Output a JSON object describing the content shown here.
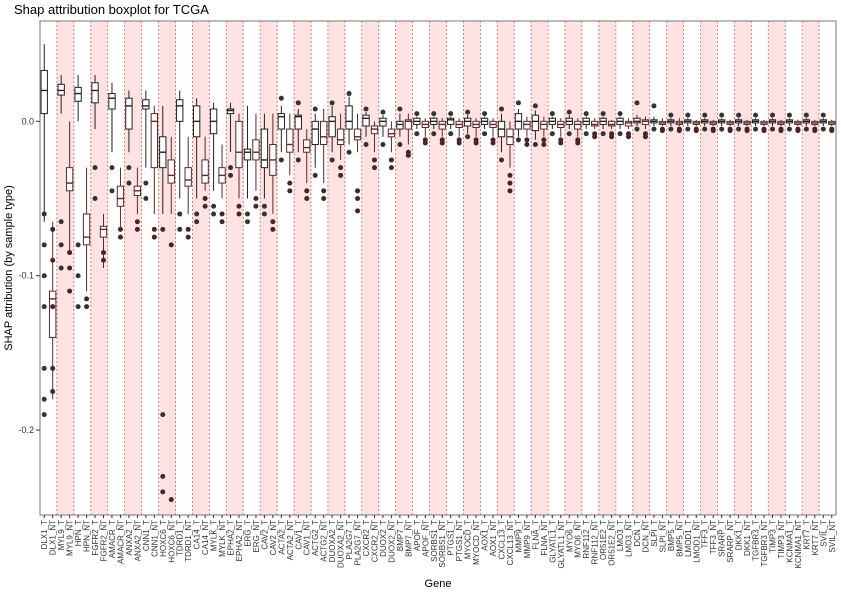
{
  "chart_data": {
    "type": "boxplot",
    "title": "Shap attribution boxplot for TCGA",
    "xlabel": "Gene",
    "ylabel": "SHAP attribution (by sample type)",
    "ylim": [
      -0.255,
      0.065
    ],
    "yticks": [
      0.0,
      -0.1,
      -0.2
    ],
    "ytick_labels": [
      "0.0",
      "-0.1",
      "-0.2"
    ],
    "grid": "vertical dashed red lines per category",
    "legend": "none",
    "colors": {
      "shade": "#ffe3e3",
      "grid": "#e06060",
      "box_outline_1": "#222222",
      "box_outline_2": "#5a2a2a",
      "points": "#333333",
      "points_alt": "#4a2424",
      "panel_border": "#777777"
    },
    "categories": [
      "DLX1_T",
      "DLX1_NT",
      "MYL9_T",
      "MYL9_NT",
      "HPN_T",
      "HPN_NT",
      "FGFR2_T",
      "FGFR2_NT",
      "AMACR_T",
      "AMACR_NT",
      "ANXA2_T",
      "ANXA2_NT",
      "CNN1_T",
      "CNN1_NT",
      "HOXC6_T",
      "HOXC6_NT",
      "TDRD1_T",
      "TDRD1_NT",
      "CA14_T",
      "CA14_NT",
      "MYLK_T",
      "MYLK_NT",
      "EPHA2_T",
      "EPHA2_NT",
      "ERG_T",
      "ERG_NT",
      "CAV2_T",
      "CAV2_NT",
      "ACTA2_T",
      "ACTA2_NT",
      "CAV1_T",
      "CAV1_NT",
      "ACTG2_T",
      "ACTG2_NT",
      "DUOXA2_T",
      "DUOXA2_NT",
      "PLA2G7_T",
      "PLA2G7_NT",
      "CXCR2_T",
      "CXCR2_NT",
      "DUOX2_T",
      "DUOX2_NT",
      "BMP7_T",
      "BMP7_NT",
      "APOF_T",
      "APOF_NT",
      "SORBS1_T",
      "SORBS1_NT",
      "PTGS1_T",
      "PTGS1_NT",
      "MYOCD_T",
      "MYOCD_NT",
      "AOX1_T",
      "AOX1_NT",
      "CXCL13_T",
      "CXCL13_NT",
      "MMP9_T",
      "MMP9_NT",
      "FLNA_T",
      "FLNA_NT",
      "GLYATL1_T",
      "GLYATL1_NT",
      "MYO6_T",
      "MYO6_NT",
      "RNF112_T",
      "RNF112_NT",
      "OR51E2_T",
      "OR51E2_NT",
      "LMO3_T",
      "LMO3_NT",
      "DCN_T",
      "DCN_NT",
      "SLPI_T",
      "SLPI_NT",
      "BMP5_T",
      "BMP5_NT",
      "LMOD1_T",
      "LMOD1_NT",
      "TFF3_T",
      "TFF3_NT",
      "SRARP_T",
      "SRARP_NT",
      "DKK1_T",
      "DKK1_NT",
      "TGFBR3_T",
      "TGFBR3_NT",
      "TIMP3_T",
      "TIMP3_NT",
      "KCNMA1_T",
      "KCNMA1_NT",
      "KRT7_T",
      "KRT7_NT",
      "SVIL_T",
      "SVIL_NT"
    ],
    "series": [
      {
        "stats": [
          [
            -0.065,
            0.005,
            0.02,
            0.033,
            0.05
          ],
          [
            -0.18,
            -0.14,
            -0.115,
            -0.11,
            -0.065
          ],
          [
            0.005,
            0.017,
            0.02,
            0.024,
            0.03
          ],
          [
            -0.085,
            -0.045,
            -0.04,
            -0.03,
            0.0
          ],
          [
            0.0,
            0.013,
            0.018,
            0.022,
            0.03
          ],
          [
            -0.11,
            -0.08,
            -0.075,
            -0.06,
            -0.03
          ],
          [
            -0.005,
            0.012,
            0.02,
            0.025,
            0.03
          ],
          [
            -0.095,
            -0.075,
            -0.07,
            -0.068,
            -0.06
          ],
          [
            -0.02,
            0.008,
            0.015,
            0.018,
            0.025
          ],
          [
            -0.07,
            -0.055,
            -0.05,
            -0.042,
            -0.03
          ],
          [
            -0.02,
            -0.005,
            0.01,
            0.015,
            0.02
          ],
          [
            -0.06,
            -0.048,
            -0.045,
            -0.042,
            -0.03
          ],
          [
            -0.03,
            0.008,
            0.01,
            0.014,
            0.02
          ],
          [
            -0.06,
            -0.03,
            0.0,
            0.005,
            0.01
          ],
          [
            -0.06,
            -0.03,
            -0.02,
            -0.01,
            0.01
          ],
          [
            -0.06,
            -0.04,
            -0.035,
            -0.025,
            -0.01
          ],
          [
            -0.05,
            0.0,
            0.01,
            0.014,
            0.02
          ],
          [
            -0.06,
            -0.042,
            -0.038,
            -0.03,
            -0.01
          ],
          [
            -0.05,
            -0.01,
            0.0,
            0.01,
            0.015
          ],
          [
            -0.045,
            -0.04,
            -0.035,
            -0.025,
            -0.01
          ],
          [
            -0.045,
            -0.008,
            0.0,
            0.008,
            0.012
          ],
          [
            -0.05,
            -0.04,
            -0.035,
            -0.03,
            -0.015
          ],
          [
            -0.02,
            0.005,
            0.007,
            0.008,
            0.012
          ],
          [
            -0.05,
            -0.03,
            -0.02,
            0.0,
            0.005
          ],
          [
            -0.05,
            -0.025,
            -0.02,
            -0.018,
            0.01
          ],
          [
            -0.045,
            -0.025,
            -0.02,
            -0.012,
            0.005
          ],
          [
            -0.05,
            -0.03,
            -0.025,
            -0.005,
            0.005
          ],
          [
            -0.06,
            -0.035,
            -0.025,
            -0.015,
            0.005
          ],
          [
            -0.02,
            -0.005,
            0.003,
            0.005,
            0.01
          ],
          [
            -0.035,
            -0.02,
            -0.015,
            -0.005,
            0.005
          ],
          [
            -0.02,
            -0.005,
            0.003,
            0.004,
            0.008
          ],
          [
            -0.04,
            -0.02,
            -0.017,
            -0.012,
            -0.005
          ],
          [
            -0.03,
            -0.015,
            -0.005,
            0.0,
            0.005
          ],
          [
            -0.04,
            -0.015,
            -0.01,
            0.0,
            0.008
          ],
          [
            -0.02,
            -0.01,
            0.0,
            0.003,
            0.01
          ],
          [
            -0.025,
            -0.015,
            -0.012,
            -0.005,
            0.005
          ],
          [
            -0.015,
            -0.005,
            0.0,
            0.01,
            0.016
          ],
          [
            -0.02,
            -0.012,
            -0.01,
            -0.005,
            0.005
          ],
          [
            -0.01,
            -0.003,
            0.002,
            0.004,
            0.006
          ],
          [
            -0.02,
            -0.008,
            -0.005,
            -0.003,
            0.0
          ],
          [
            -0.01,
            -0.003,
            0.0,
            0.002,
            0.004
          ],
          [
            -0.02,
            -0.01,
            -0.008,
            -0.005,
            0.0
          ],
          [
            -0.01,
            -0.005,
            -0.002,
            0.0,
            0.005
          ],
          [
            -0.015,
            -0.005,
            0.0,
            0.001,
            0.005
          ],
          [
            -0.005,
            -0.002,
            0.0,
            0.002,
            0.003
          ],
          [
            -0.01,
            -0.004,
            -0.002,
            0.0,
            0.002
          ],
          [
            -0.005,
            -0.002,
            0.0,
            0.002,
            0.003
          ],
          [
            -0.01,
            -0.005,
            -0.002,
            0.0,
            0.002
          ],
          [
            -0.005,
            -0.002,
            0.001,
            0.002,
            0.003
          ],
          [
            -0.01,
            -0.004,
            -0.002,
            0.0,
            0.002
          ],
          [
            -0.008,
            -0.003,
            0.0,
            0.002,
            0.004
          ],
          [
            -0.01,
            -0.004,
            -0.002,
            0.0,
            0.002
          ],
          [
            -0.005,
            -0.002,
            0.0,
            0.002,
            0.003
          ],
          [
            -0.01,
            -0.004,
            -0.002,
            0.0,
            0.002
          ],
          [
            -0.02,
            -0.01,
            -0.005,
            0.0,
            0.005
          ],
          [
            -0.03,
            -0.015,
            -0.01,
            -0.005,
            0.0
          ],
          [
            -0.01,
            -0.005,
            0.0,
            0.005,
            0.008
          ],
          [
            -0.01,
            -0.005,
            -0.002,
            0.0,
            0.003
          ],
          [
            -0.012,
            -0.006,
            0.0,
            0.004,
            0.007
          ],
          [
            -0.01,
            -0.005,
            -0.002,
            0.0,
            0.003
          ],
          [
            -0.005,
            -0.002,
            0.0,
            0.002,
            0.003
          ],
          [
            -0.01,
            -0.004,
            -0.002,
            0.0,
            0.002
          ],
          [
            -0.005,
            -0.002,
            0.0,
            0.002,
            0.004
          ],
          [
            -0.01,
            -0.005,
            -0.002,
            0.0,
            0.002
          ],
          [
            -0.005,
            -0.002,
            0.0,
            0.002,
            0.003
          ],
          [
            -0.005,
            -0.003,
            -0.002,
            0.0,
            0.002
          ],
          [
            -0.005,
            -0.002,
            0.0,
            0.002,
            0.003
          ],
          [
            -0.005,
            -0.003,
            -0.002,
            0.0,
            0.001
          ],
          [
            -0.005,
            -0.002,
            0.0,
            0.002,
            0.003
          ],
          [
            -0.005,
            -0.003,
            -0.001,
            0.0,
            0.002
          ],
          [
            -0.003,
            -0.001,
            0.0,
            0.002,
            0.004
          ],
          [
            -0.005,
            -0.002,
            0.0,
            0.001,
            0.003
          ],
          [
            -0.003,
            -0.001,
            0.0,
            0.001,
            0.003
          ],
          [
            -0.003,
            -0.002,
            -0.001,
            0.0,
            0.002
          ],
          [
            -0.003,
            -0.001,
            0.0,
            0.001,
            0.002
          ],
          [
            -0.003,
            -0.002,
            -0.001,
            0.0,
            0.002
          ],
          [
            -0.003,
            -0.001,
            0.0,
            0.001,
            0.002
          ],
          [
            -0.003,
            -0.002,
            -0.001,
            0.0,
            0.001
          ],
          [
            -0.003,
            -0.001,
            0.0,
            0.001,
            0.002
          ],
          [
            -0.003,
            -0.002,
            -0.001,
            0.0,
            0.001
          ],
          [
            -0.003,
            -0.001,
            0.0,
            0.001,
            0.002
          ],
          [
            -0.003,
            -0.002,
            -0.001,
            0.0,
            0.001
          ],
          [
            -0.003,
            -0.001,
            0.0,
            0.001,
            0.002
          ],
          [
            -0.003,
            -0.002,
            -0.001,
            0.0,
            0.001
          ],
          [
            -0.003,
            -0.001,
            0.0,
            0.001,
            0.002
          ],
          [
            -0.003,
            -0.002,
            -0.001,
            0.0,
            0.001
          ],
          [
            -0.003,
            -0.001,
            0.0,
            0.001,
            0.002
          ],
          [
            -0.003,
            -0.002,
            -0.001,
            0.0,
            0.001
          ],
          [
            -0.003,
            -0.001,
            0.0,
            0.001,
            0.002
          ],
          [
            -0.003,
            -0.002,
            -0.001,
            0.0,
            0.001
          ],
          [
            -0.003,
            -0.001,
            0.0,
            0.001,
            0.002
          ],
          [
            -0.003,
            -0.002,
            -0.001,
            0.0,
            0.001
          ],
          [
            -0.003,
            -0.001,
            0.0,
            0.001,
            0.002
          ],
          [
            -0.003,
            -0.002,
            -0.001,
            0.0,
            0.001
          ]
        ]
      },
      {
        "outliers": [
          [
            -0.18,
            -0.19,
            -0.16,
            -0.12,
            -0.1,
            -0.08,
            -0.06
          ],
          [
            -0.175,
            -0.16,
            -0.12,
            -0.09,
            -0.07
          ],
          [
            -0.065,
            -0.08,
            -0.095
          ],
          [
            -0.11,
            -0.095,
            -0.085
          ],
          [
            -0.08,
            -0.1,
            -0.12
          ],
          [
            -0.115,
            -0.12
          ],
          [
            -0.03,
            -0.05
          ],
          [
            -0.09,
            -0.085
          ],
          [
            -0.03,
            -0.045
          ],
          [
            -0.07,
            -0.075
          ],
          [
            -0.03,
            -0.04
          ],
          [
            -0.065,
            -0.07
          ],
          [
            -0.04,
            -0.05
          ],
          [
            -0.07,
            -0.075
          ],
          [
            -0.19,
            -0.23,
            -0.24,
            -0.07
          ],
          [
            -0.245,
            -0.08
          ],
          [
            -0.06,
            -0.07
          ],
          [
            -0.07,
            -0.075
          ],
          [
            -0.06,
            -0.065
          ],
          [
            -0.05,
            -0.055
          ],
          [
            -0.055,
            -0.06
          ],
          [
            -0.06,
            -0.065
          ],
          [
            -0.03,
            -0.035
          ],
          [
            -0.055,
            -0.06
          ],
          [
            -0.06,
            -0.065
          ],
          [
            -0.05,
            -0.055
          ],
          [
            -0.055,
            -0.06
          ],
          [
            -0.065,
            -0.07
          ],
          [
            -0.025,
            0.015
          ],
          [
            -0.04,
            -0.045
          ],
          [
            -0.025,
            0.012
          ],
          [
            -0.045,
            -0.05
          ],
          [
            -0.035,
            0.008
          ],
          [
            -0.045,
            -0.05
          ],
          [
            -0.025,
            0.012
          ],
          [
            -0.03,
            -0.035
          ],
          [
            -0.02,
            0.018
          ],
          [
            -0.058,
            -0.05,
            -0.045
          ],
          [
            -0.015,
            0.008
          ],
          [
            -0.025,
            -0.03
          ],
          [
            -0.015,
            0.006
          ],
          [
            -0.025,
            -0.03
          ],
          [
            -0.015,
            0.008
          ],
          [
            -0.02,
            -0.022
          ],
          [
            -0.008,
            0.005
          ],
          [
            -0.012,
            -0.014
          ],
          [
            -0.008,
            0.005
          ],
          [
            -0.012,
            -0.014
          ],
          [
            -0.008,
            0.005
          ],
          [
            -0.012,
            -0.014
          ],
          [
            -0.01,
            0.006
          ],
          [
            -0.012,
            -0.014
          ],
          [
            -0.008,
            0.005
          ],
          [
            -0.012,
            -0.014
          ],
          [
            -0.025,
            0.008
          ],
          [
            -0.045,
            -0.04,
            -0.035
          ],
          [
            -0.012,
            0.012
          ],
          [
            -0.012,
            -0.015
          ],
          [
            -0.015,
            0.01
          ],
          [
            -0.012,
            -0.015
          ],
          [
            -0.008,
            0.005
          ],
          [
            -0.012,
            -0.014
          ],
          [
            -0.008,
            0.006
          ],
          [
            -0.012,
            -0.014
          ],
          [
            -0.008,
            0.005
          ],
          [
            -0.008,
            -0.01
          ],
          [
            -0.008,
            0.005
          ],
          [
            -0.008,
            -0.01
          ],
          [
            -0.008,
            0.005
          ],
          [
            -0.008,
            -0.01
          ],
          [
            -0.005,
            0.012
          ],
          [
            -0.008,
            -0.01
          ],
          [
            -0.005,
            0.01
          ],
          [
            -0.005,
            -0.006
          ],
          [
            -0.005,
            0.004
          ],
          [
            -0.005,
            -0.006
          ],
          [
            -0.005,
            0.004
          ],
          [
            -0.005,
            -0.006
          ],
          [
            -0.005,
            0.004
          ],
          [
            -0.005,
            -0.006
          ],
          [
            -0.005,
            0.004
          ],
          [
            -0.005,
            -0.006
          ],
          [
            -0.005,
            0.004
          ],
          [
            -0.005,
            -0.006
          ],
          [
            -0.005,
            0.004
          ],
          [
            -0.005,
            -0.006
          ],
          [
            -0.005,
            0.004
          ],
          [
            -0.005,
            -0.006
          ],
          [
            -0.005,
            0.004
          ],
          [
            -0.005,
            -0.006
          ],
          [
            -0.005,
            0.004
          ],
          [
            -0.005,
            -0.006
          ],
          [
            -0.005,
            0.004
          ],
          [
            -0.005,
            -0.006
          ]
        ]
      }
    ]
  }
}
